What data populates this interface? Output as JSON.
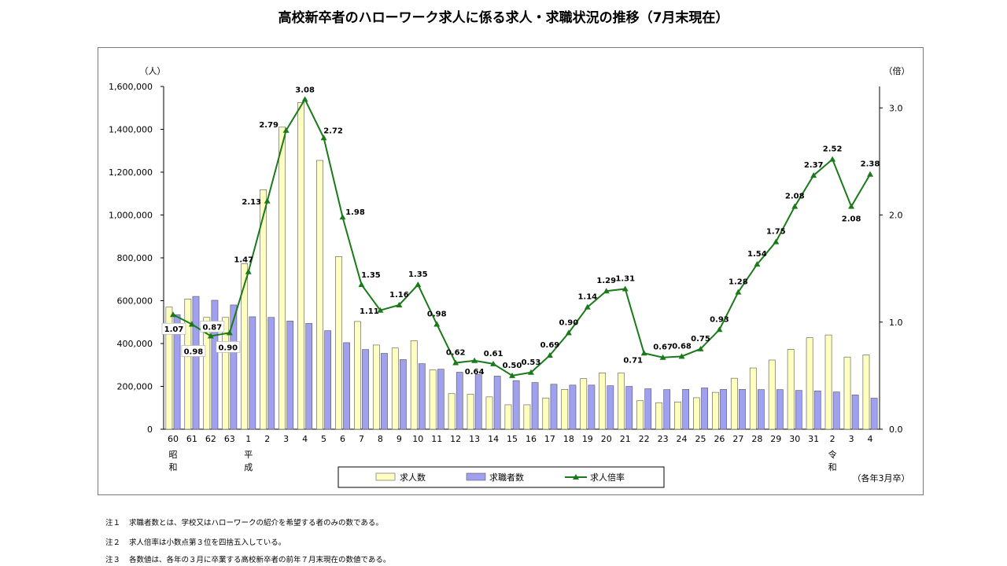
{
  "title": "高校新卒者のハローワーク求人に係る求人・求職状況の推移（7月末現在）",
  "chart_data": {
    "type": "bar+line",
    "categories": [
      "60",
      "61",
      "62",
      "63",
      "1",
      "2",
      "3",
      "4",
      "5",
      "6",
      "7",
      "8",
      "9",
      "10",
      "11",
      "12",
      "13",
      "14",
      "15",
      "16",
      "17",
      "18",
      "19",
      "20",
      "21",
      "22",
      "23",
      "24",
      "25",
      "26",
      "27",
      "28",
      "29",
      "30",
      "31",
      "2",
      "3",
      "4"
    ],
    "era_labels": [
      {
        "category_index": 0,
        "text": [
          "昭",
          "和"
        ]
      },
      {
        "category_index": 4,
        "text": [
          "平",
          "成"
        ]
      },
      {
        "category_index": 35,
        "text": [
          "令",
          "和"
        ]
      }
    ],
    "left_unit": "（人）",
    "right_unit": "（倍）",
    "left_ticks": [
      "0",
      "200,000",
      "400,000",
      "600,000",
      "800,000",
      "1,000,000",
      "1,200,000",
      "1,400,000",
      "1,600,000"
    ],
    "left_ylim": [
      0,
      1600000
    ],
    "right_ticks": [
      "0.0",
      "1.0",
      "2.0",
      "3.0"
    ],
    "right_ylim": [
      0,
      3.2
    ],
    "series": [
      {
        "name": "求人数",
        "kind": "bar",
        "color": "#ffffc0",
        "values": [
          570000,
          608000,
          522000,
          522000,
          773000,
          1118000,
          1410000,
          1525000,
          1255000,
          806000,
          503000,
          393000,
          379000,
          413000,
          277000,
          166000,
          163000,
          151000,
          114000,
          114000,
          146000,
          186000,
          236000,
          263000,
          262000,
          133000,
          124000,
          127000,
          147000,
          172000,
          238000,
          286000,
          323000,
          373000,
          427000,
          440000,
          337000,
          347000
        ]
      },
      {
        "name": "求職者数",
        "kind": "bar",
        "color": "#a0a0f0",
        "values": [
          535000,
          620000,
          602000,
          580000,
          525000,
          522000,
          505000,
          494000,
          460000,
          404000,
          372000,
          354000,
          325000,
          306000,
          280000,
          266000,
          255000,
          248000,
          227000,
          218000,
          210000,
          206000,
          206000,
          203000,
          200000,
          189000,
          185000,
          186000,
          193000,
          186000,
          186000,
          185000,
          185000,
          181000,
          179000,
          174000,
          160000,
          145000
        ]
      },
      {
        "name": "求人倍率",
        "kind": "line",
        "color": "#1a7a1a",
        "values": [
          1.07,
          0.98,
          0.87,
          0.9,
          1.47,
          2.13,
          2.79,
          3.08,
          2.72,
          1.98,
          1.35,
          1.11,
          1.16,
          1.35,
          0.98,
          0.62,
          0.64,
          0.61,
          0.5,
          0.53,
          0.69,
          0.9,
          1.14,
          1.29,
          1.31,
          0.71,
          0.67,
          0.68,
          0.75,
          0.93,
          1.28,
          1.54,
          1.75,
          2.08,
          2.37,
          2.52,
          2.08,
          2.38
        ]
      }
    ],
    "ratio_labels": [
      "1.07",
      "0.98",
      "0.87",
      "0.90",
      "1.47",
      "2.13",
      "2.79",
      "3.08",
      "2.72",
      "1.98",
      "1.35",
      "1.11",
      "1.16",
      "1.35",
      "0.98",
      "0.62",
      "0.64",
      "0.61",
      "0.50",
      "0.53",
      "0.69",
      "0.90",
      "1.14",
      "1.29",
      "1.31",
      "0.71",
      "0.67",
      "0.68",
      "0.75",
      "0.93",
      "1.28",
      "1.54",
      "1.75",
      "2.08",
      "2.37",
      "2.52",
      "2.08",
      "2.38"
    ],
    "legend_position": "bottom-center",
    "footnote_right": "（各年3月卒）"
  },
  "notes": [
    {
      "num": "注１",
      "text": "求職者数とは、学校又はハローワークの紹介を希望する者のみの数である。"
    },
    {
      "num": "注２",
      "text": "求人倍率は小数点第３位を四捨五入している。"
    },
    {
      "num": "注３",
      "text": "各数値は、各年の３月に卒業する高校新卒者の前年７月末現在の数値である。"
    }
  ]
}
